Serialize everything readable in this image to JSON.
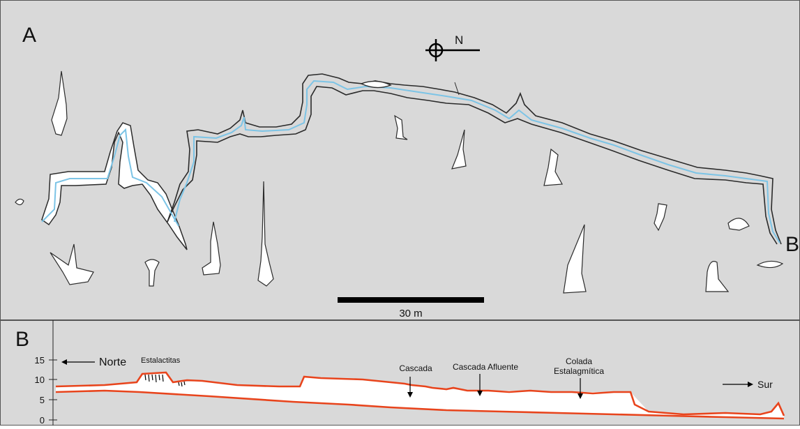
{
  "panel_a": {
    "letter": "A",
    "north_label": "N",
    "end_letter": "B",
    "scale_label": "30 m"
  },
  "panel_b": {
    "letter": "B",
    "y_axis_ticks": [
      "0",
      "5",
      "10",
      "15"
    ],
    "north_label": "Norte",
    "south_label": "Sur",
    "annotations": {
      "stalactites": "Estalactitas",
      "waterfall": "Cascada",
      "tributary_waterfall": "Cascada Afluente",
      "flowstone_line1": "Colada",
      "flowstone_line2": "Estalagmítica"
    }
  },
  "colors": {
    "panel_background": "#d9d9d9",
    "cave_outline": "#2a2a2a",
    "stream": "#7cc4e6",
    "profile_line": "#e8441c",
    "cave_fill": "#ffffff"
  }
}
